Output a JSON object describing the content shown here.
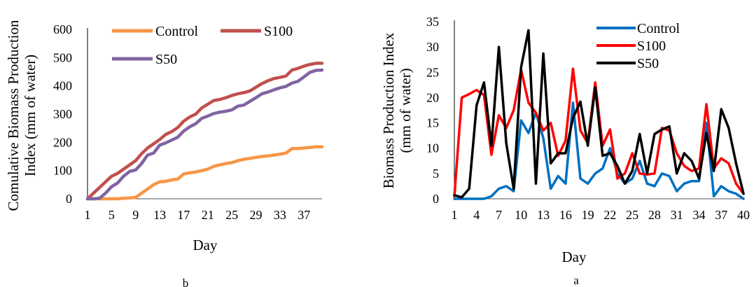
{
  "chart_data": [
    {
      "type": "line",
      "panel_label": "b",
      "xlabel": "Day",
      "ylabel_lines": [
        "Comulative Biomass Production",
        "Index (mm of water)"
      ],
      "ylim": [
        0,
        600
      ],
      "yticks": [
        0,
        100,
        200,
        300,
        400,
        500,
        600
      ],
      "xlim": [
        1,
        40
      ],
      "xticks": [
        1,
        5,
        9,
        13,
        17,
        21,
        25,
        29,
        33,
        37
      ],
      "grid": false,
      "legend_position": "top",
      "series": [
        {
          "name": "Control",
          "color": "#f79646",
          "x": [
            1,
            2,
            3,
            4,
            5,
            6,
            7,
            8,
            9,
            10,
            11,
            12,
            13,
            14,
            15,
            16,
            17,
            18,
            19,
            20,
            21,
            22,
            23,
            24,
            25,
            26,
            27,
            28,
            29,
            30,
            31,
            32,
            33,
            34,
            35,
            36,
            37,
            38,
            39,
            40
          ],
          "values": [
            0,
            0,
            0,
            0,
            0,
            0,
            2,
            3,
            5,
            20,
            35,
            50,
            60,
            62,
            67,
            70,
            88,
            92,
            95,
            100,
            105,
            115,
            120,
            125,
            128,
            135,
            140,
            143,
            147,
            150,
            152,
            155,
            158,
            162,
            178,
            178,
            180,
            182,
            184,
            184
          ]
        },
        {
          "name": "S100",
          "color": "#c0504d",
          "x": [
            1,
            2,
            3,
            4,
            5,
            6,
            7,
            8,
            9,
            10,
            11,
            12,
            13,
            14,
            15,
            16,
            17,
            18,
            19,
            20,
            21,
            22,
            23,
            24,
            25,
            26,
            27,
            28,
            29,
            30,
            31,
            32,
            33,
            34,
            35,
            36,
            37,
            38,
            39,
            40
          ],
          "values": [
            0,
            20,
            40,
            60,
            80,
            90,
            105,
            120,
            135,
            160,
            180,
            195,
            210,
            228,
            238,
            252,
            275,
            290,
            300,
            322,
            335,
            348,
            352,
            358,
            366,
            372,
            376,
            382,
            395,
            408,
            418,
            426,
            430,
            435,
            456,
            462,
            470,
            476,
            480,
            480
          ]
        },
        {
          "name": "S50",
          "color": "#8064a2",
          "x": [
            1,
            2,
            3,
            4,
            5,
            6,
            7,
            8,
            9,
            10,
            11,
            12,
            13,
            14,
            15,
            16,
            17,
            18,
            19,
            20,
            21,
            22,
            23,
            24,
            25,
            26,
            27,
            28,
            29,
            30,
            31,
            32,
            33,
            34,
            35,
            36,
            37,
            38,
            39,
            40
          ],
          "values": [
            0,
            0,
            2,
            20,
            43,
            56,
            80,
            97,
            102,
            125,
            155,
            162,
            190,
            198,
            208,
            218,
            240,
            255,
            266,
            285,
            293,
            302,
            307,
            310,
            315,
            328,
            332,
            345,
            358,
            372,
            378,
            386,
            393,
            398,
            410,
            416,
            432,
            448,
            455,
            456
          ]
        }
      ]
    },
    {
      "type": "line",
      "panel_label": "a",
      "xlabel": "Day",
      "ylabel_lines": [
        "Biomass Production Index",
        "(mm of water)"
      ],
      "ylim": [
        0,
        35
      ],
      "yticks": [
        0,
        5,
        10,
        15,
        20,
        25,
        30,
        35
      ],
      "xlim": [
        1,
        40
      ],
      "xticks": [
        1,
        4,
        7,
        10,
        13,
        16,
        19,
        22,
        25,
        28,
        31,
        34,
        37,
        40
      ],
      "grid": false,
      "legend_position": "top-right",
      "series": [
        {
          "name": "Control",
          "color": "#0070c0",
          "x": [
            1,
            2,
            3,
            4,
            5,
            6,
            7,
            8,
            9,
            10,
            11,
            12,
            13,
            14,
            15,
            16,
            17,
            18,
            19,
            20,
            21,
            22,
            23,
            24,
            25,
            26,
            27,
            28,
            29,
            30,
            31,
            32,
            33,
            34,
            35,
            36,
            37,
            38,
            39,
            40
          ],
          "values": [
            0,
            0,
            0,
            0,
            0,
            0.5,
            2,
            2.5,
            1.5,
            15.5,
            13,
            17,
            12,
            2,
            4.5,
            3,
            19,
            4,
            3,
            5,
            6,
            10,
            5,
            3,
            4,
            7.5,
            3,
            2.5,
            5,
            4.5,
            1.5,
            3,
            3.5,
            3.5,
            15,
            0.5,
            2.5,
            1.5,
            1,
            0
          ]
        },
        {
          "name": "S100",
          "color": "#ff0000",
          "x": [
            1,
            2,
            3,
            4,
            5,
            6,
            7,
            8,
            9,
            10,
            11,
            12,
            13,
            14,
            15,
            16,
            17,
            18,
            19,
            20,
            21,
            22,
            23,
            24,
            25,
            26,
            27,
            28,
            29,
            30,
            31,
            32,
            33,
            34,
            35,
            36,
            37,
            38,
            39,
            40
          ],
          "values": [
            0.5,
            20,
            20.7,
            21.5,
            20.5,
            8.7,
            16.5,
            14,
            17.5,
            25.5,
            19,
            17,
            13.5,
            15,
            8.5,
            11.5,
            25.7,
            13.5,
            11,
            23,
            10.5,
            13.7,
            4,
            5,
            9,
            5,
            4.8,
            5,
            14,
            13.5,
            9,
            6.5,
            5.5,
            6,
            18.7,
            6,
            8,
            7,
            3,
            1
          ]
        },
        {
          "name": "S50",
          "color": "#000000",
          "x": [
            1,
            2,
            3,
            4,
            5,
            6,
            7,
            8,
            9,
            10,
            11,
            12,
            13,
            14,
            15,
            16,
            17,
            18,
            19,
            20,
            21,
            22,
            23,
            24,
            25,
            26,
            27,
            28,
            29,
            30,
            31,
            32,
            33,
            34,
            35,
            36,
            37,
            38,
            39,
            40
          ],
          "values": [
            0.7,
            0.3,
            2,
            18.5,
            23,
            10.5,
            30,
            11,
            2,
            26,
            33.3,
            3,
            28.7,
            7,
            9,
            9,
            16,
            19.2,
            10.5,
            22,
            8.5,
            9,
            6.5,
            3,
            5.5,
            12.8,
            5,
            12.8,
            13.7,
            14.3,
            5,
            9,
            7.5,
            4,
            13,
            5.5,
            17.7,
            14,
            7,
            1
          ]
        }
      ]
    }
  ]
}
